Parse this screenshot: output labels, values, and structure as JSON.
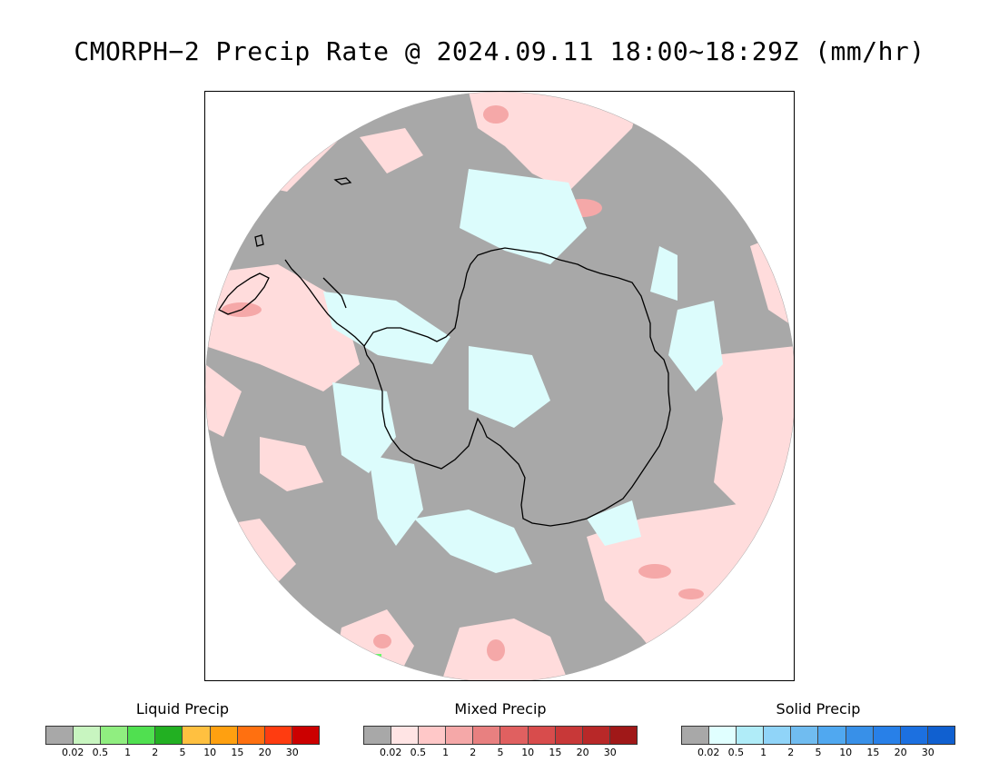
{
  "title": "CMORPH−2 Precip Rate @ 2024.09.11 18:00~18:29Z (mm/hr)",
  "map": {
    "projection": "south-polar-stereographic",
    "colors": {
      "no_precip": "#a8a8a8",
      "mixed_light": "#ffdcdc",
      "mixed_mid": "#f5a8a8",
      "mixed_heavy": "#e88888",
      "solid_light": "#dcfcfc",
      "liquid_light": "#66ff66",
      "coastline": "#000000",
      "outside": "#ffffff"
    }
  },
  "legends": [
    {
      "title": "Liquid Precip",
      "colors": [
        "#a8a8a8",
        "#c8f5c0",
        "#90ee80",
        "#50e050",
        "#22b022",
        "#ffc040",
        "#ffa010",
        "#ff7010",
        "#ff3c10",
        "#cc0000"
      ],
      "ticks": [
        "0.02",
        "0.5",
        "1",
        "2",
        "5",
        "10",
        "15",
        "20",
        "30"
      ]
    },
    {
      "title": "Mixed Precip",
      "colors": [
        "#a8a8a8",
        "#ffe4e4",
        "#ffc8c8",
        "#f5a8a8",
        "#e88080",
        "#e06060",
        "#d84c4c",
        "#c83838",
        "#b82828",
        "#a01818"
      ],
      "ticks": [
        "0.02",
        "0.5",
        "1",
        "2",
        "5",
        "10",
        "15",
        "20",
        "30"
      ]
    },
    {
      "title": "Solid Precip",
      "colors": [
        "#a8a8a8",
        "#e0ffff",
        "#b0ecf8",
        "#90d4f8",
        "#70bcf0",
        "#50a8f0",
        "#3890e8",
        "#2880e8",
        "#1c70e0",
        "#1060d0"
      ],
      "ticks": [
        "0.02",
        "0.5",
        "1",
        "2",
        "5",
        "10",
        "15",
        "20",
        "30"
      ]
    }
  ]
}
